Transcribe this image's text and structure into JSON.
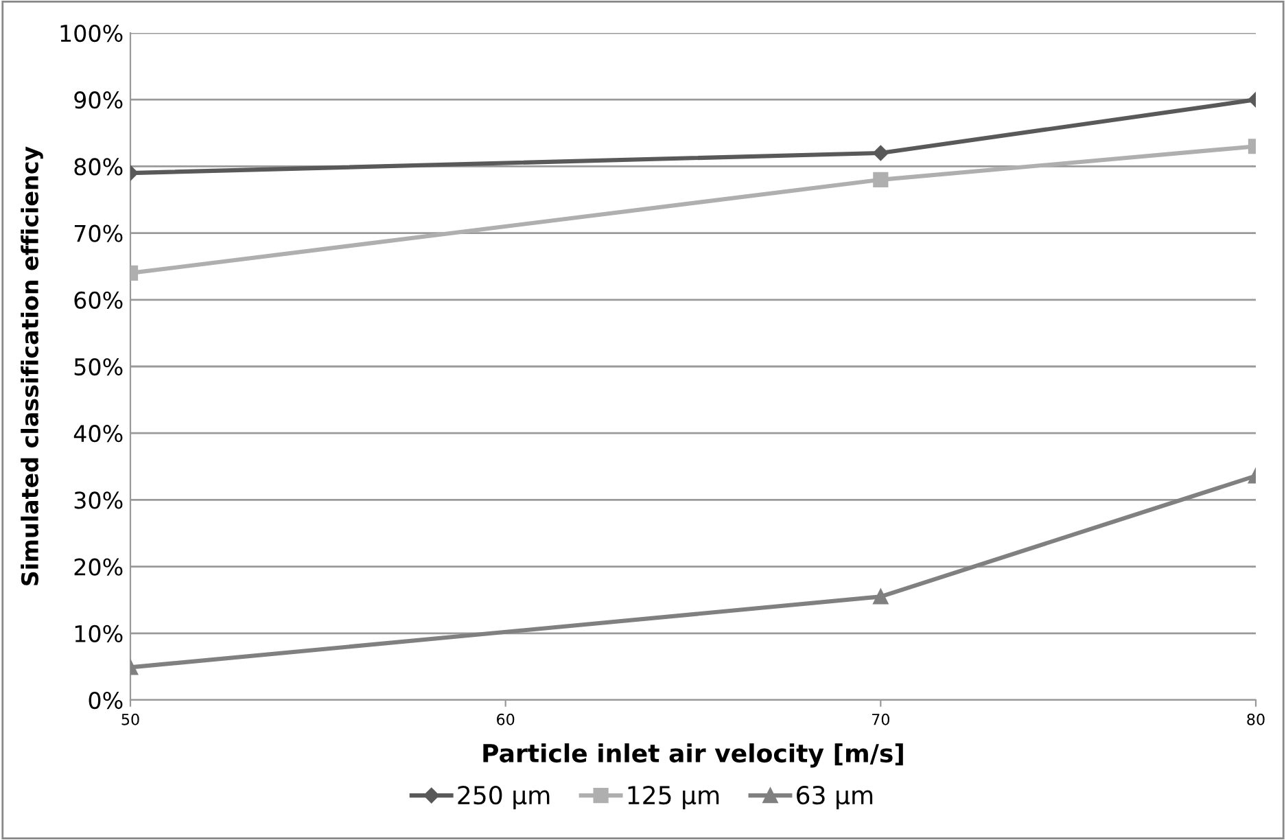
{
  "chart_data": {
    "type": "line",
    "xlabel": "Particle inlet air velocity [m/s]",
    "ylabel": "Simulated classification efficiency",
    "x": [
      50,
      70,
      80
    ],
    "series": [
      {
        "name": "250 µm",
        "color": "#595959",
        "marker": "diamond",
        "values": [
          79,
          82,
          90
        ]
      },
      {
        "name": "125 µm",
        "color": "#afafaf",
        "marker": "square",
        "values": [
          64,
          78,
          83
        ]
      },
      {
        "name": "63 µm",
        "color": "#808080",
        "marker": "triangle",
        "values": [
          4.9,
          15.5,
          33.6
        ]
      }
    ],
    "xlim": [
      50,
      80
    ],
    "xticks": [
      50,
      60,
      70,
      80
    ],
    "ylim": [
      0,
      100
    ],
    "yticks": [
      {
        "value": 0,
        "label": "0%"
      },
      {
        "value": 10,
        "label": "10%"
      },
      {
        "value": 20,
        "label": "20%"
      },
      {
        "value": 30,
        "label": "30%"
      },
      {
        "value": 40,
        "label": "40%"
      },
      {
        "value": 50,
        "label": "50%"
      },
      {
        "value": 60,
        "label": "60%"
      },
      {
        "value": 70,
        "label": "70%"
      },
      {
        "value": 80,
        "label": "80%"
      },
      {
        "value": 90,
        "label": "90%"
      },
      {
        "value": 100,
        "label": "100%"
      }
    ],
    "grid": "y",
    "legend": "bottom",
    "line_style": "solid"
  }
}
